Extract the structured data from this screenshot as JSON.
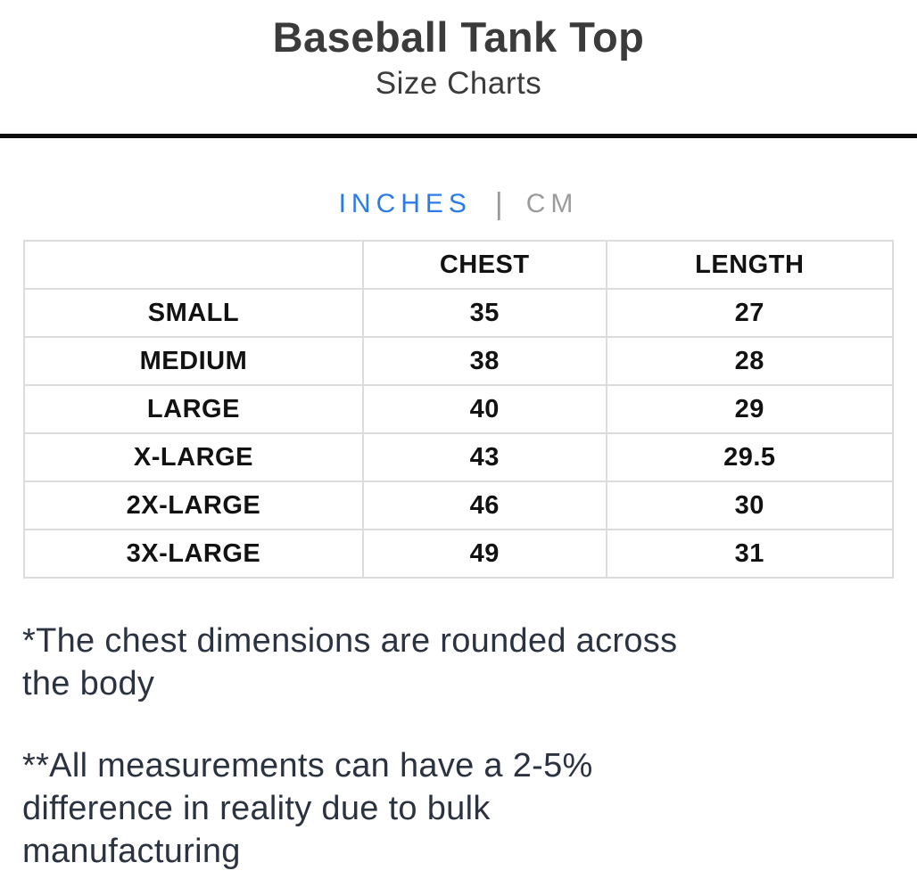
{
  "header": {
    "title": "Baseball Tank Top",
    "subtitle": "Size Charts"
  },
  "unit_toggle": {
    "inches_label": "INCHES",
    "separator": "|",
    "cm_label": "CM",
    "active_unit": "INCHES",
    "active_color": "#2c7be8",
    "inactive_color": "#9b9b9b"
  },
  "size_table": {
    "columns": [
      "",
      "CHEST",
      "LENGTH"
    ],
    "rows": [
      {
        "size": "SMALL",
        "chest": "35",
        "length": "27"
      },
      {
        "size": "MEDIUM",
        "chest": "38",
        "length": "28"
      },
      {
        "size": "LARGE",
        "chest": "40",
        "length": "29"
      },
      {
        "size": "X-LARGE",
        "chest": "43",
        "length": "29.5"
      },
      {
        "size": "2X-LARGE",
        "chest": "46",
        "length": "30"
      },
      {
        "size": "3X-LARGE",
        "chest": "49",
        "length": "31"
      }
    ]
  },
  "notes": {
    "note1": "*The chest dimensions are rounded across\nthe body",
    "note2": "**All measurements can have a 2-5%\ndifference in reality due to bulk\nmanufacturing"
  }
}
